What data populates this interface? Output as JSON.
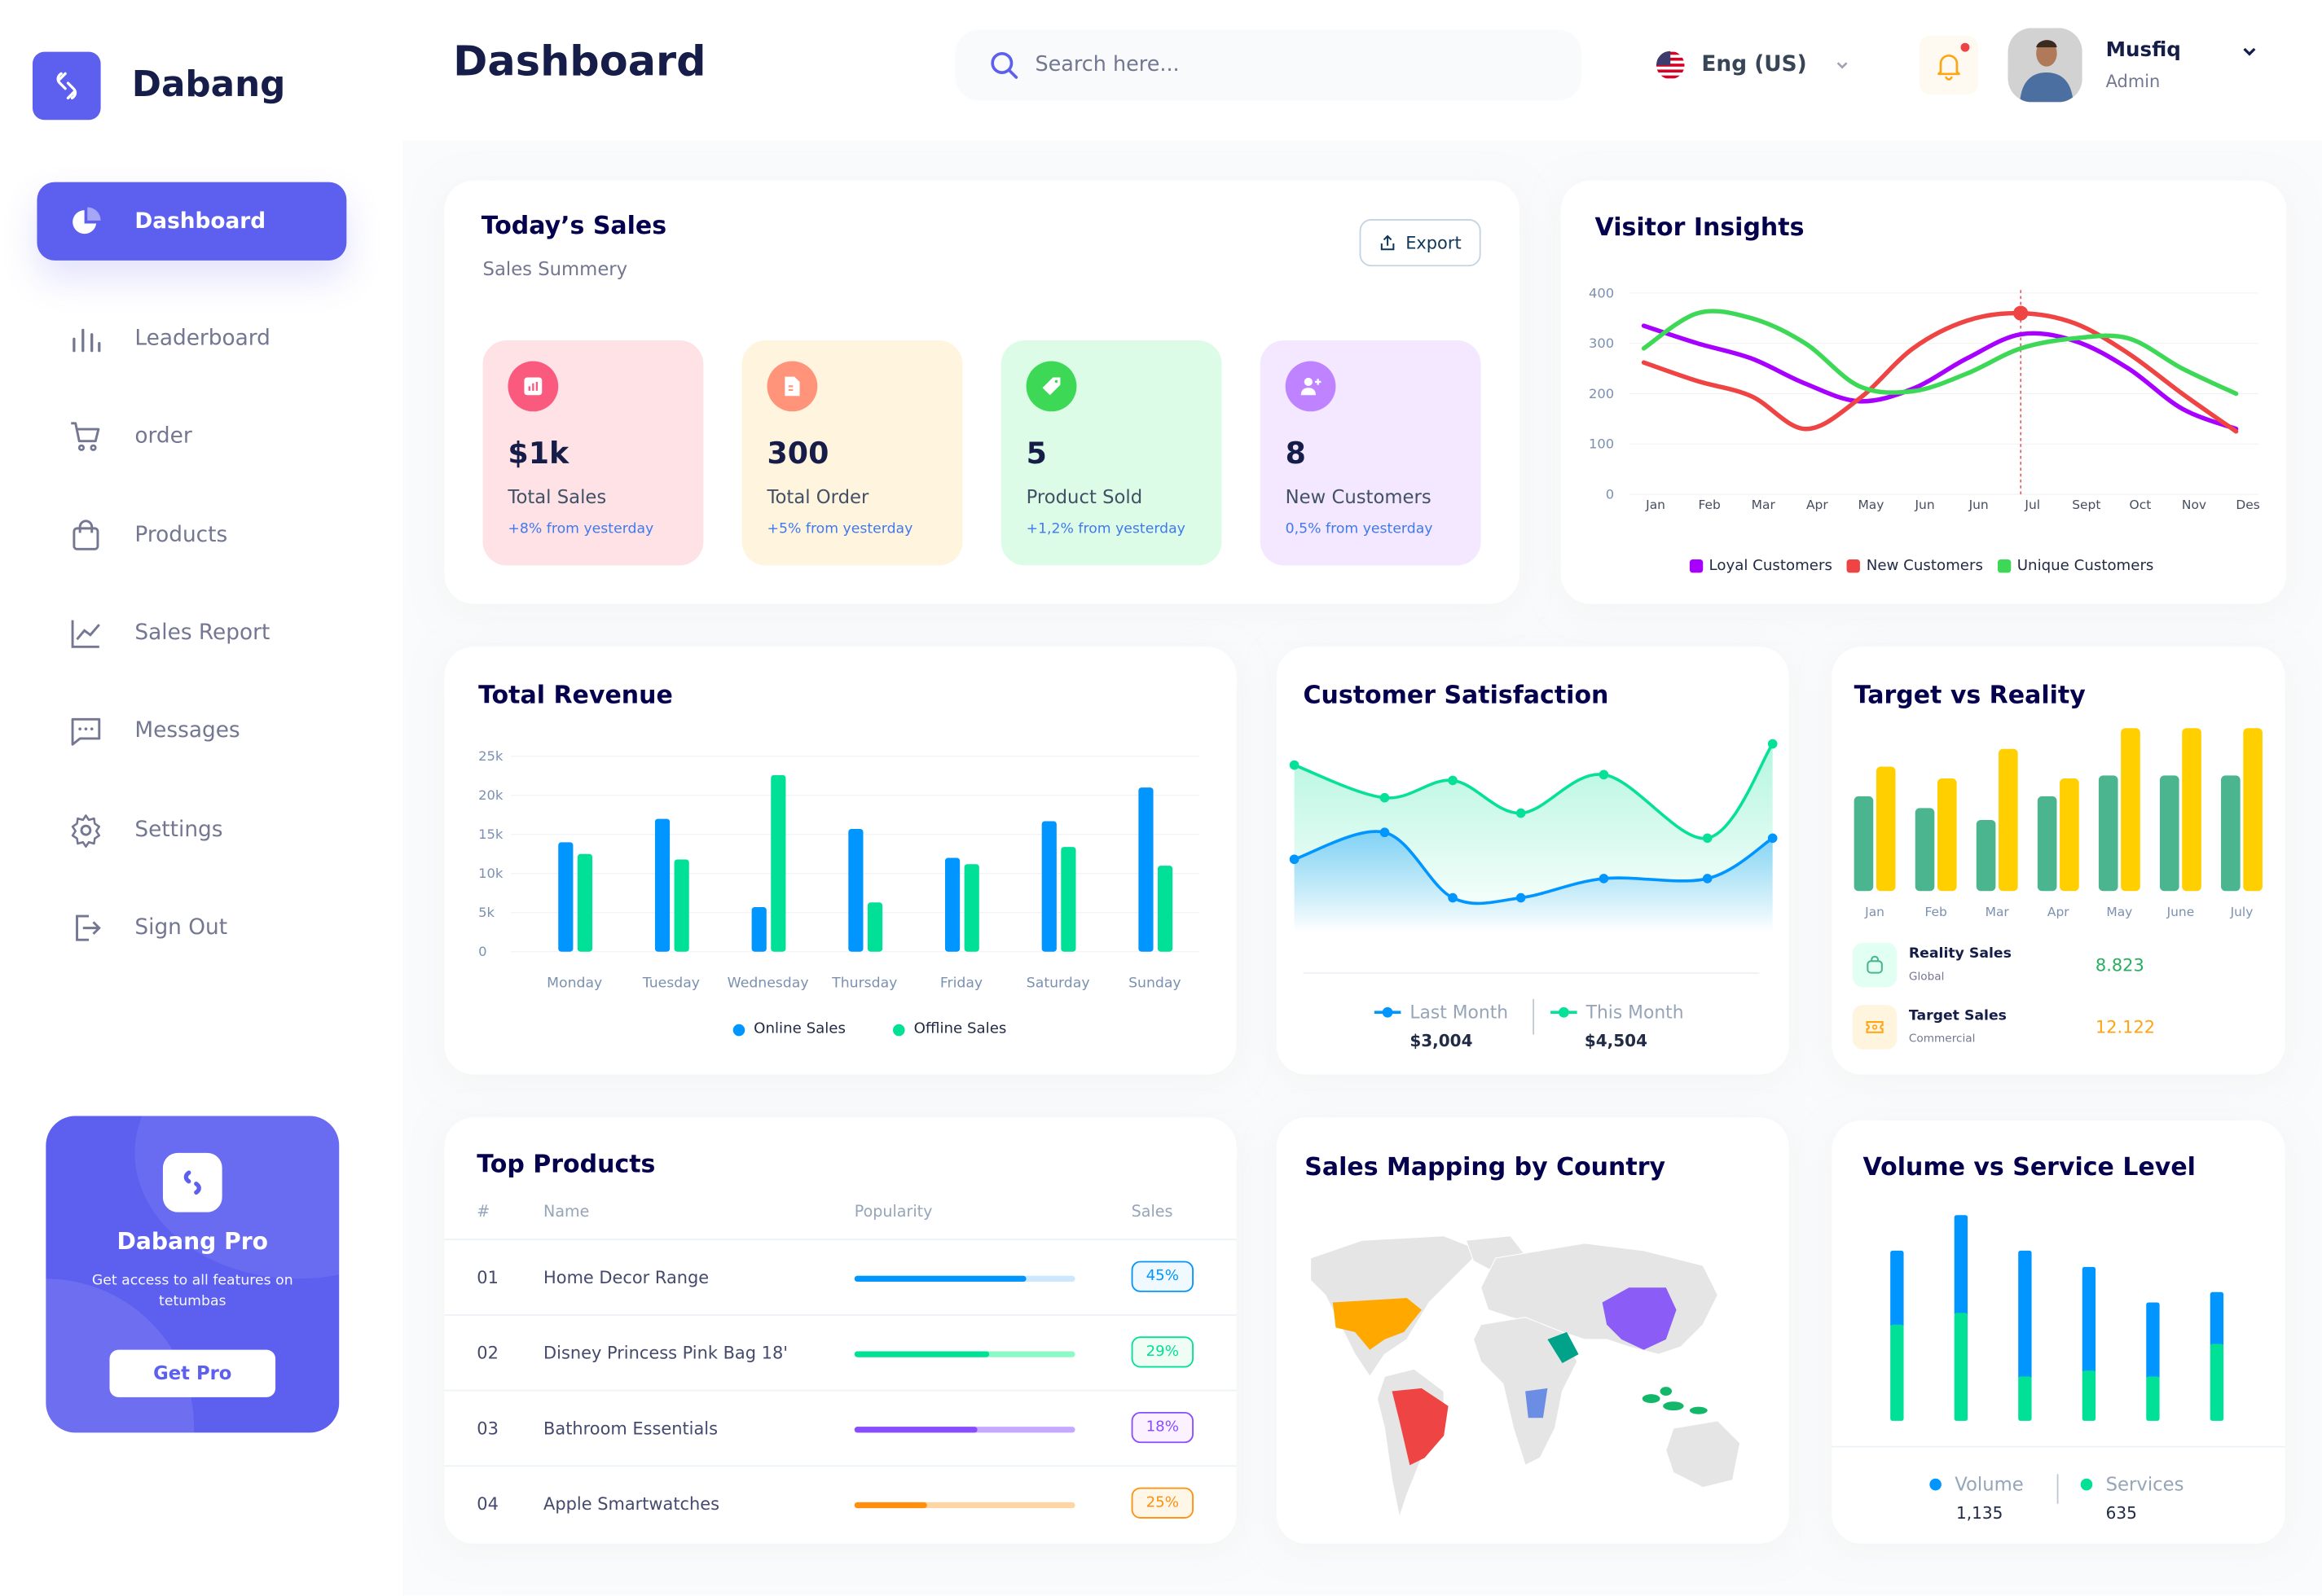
{
  "brand": {
    "name": "Dabang"
  },
  "header": {
    "title": "Dashboard",
    "search_placeholder": "Search here...",
    "language": "Eng (US)",
    "user": {
      "name": "Musfiq",
      "role": "Admin"
    },
    "has_notification": true
  },
  "colors": {
    "accent": "#5D5FEF",
    "title": "#05004E",
    "muted": "#737791"
  },
  "sidebar": {
    "items": [
      {
        "label": "Dashboard",
        "icon": "pie-chart-icon",
        "active": true
      },
      {
        "label": "Leaderboard",
        "icon": "bar-chart-icon"
      },
      {
        "label": "order",
        "icon": "cart-icon"
      },
      {
        "label": "Products",
        "icon": "shopping-bag-icon"
      },
      {
        "label": "Sales Report",
        "icon": "line-chart-icon"
      },
      {
        "label": "Messages",
        "icon": "message-icon"
      },
      {
        "label": "Settings",
        "icon": "gear-icon"
      },
      {
        "label": "Sign Out",
        "icon": "sign-out-icon"
      }
    ],
    "promo": {
      "title": "Dabang Pro",
      "text": "Get access to all features on tetumbas",
      "button": "Get Pro"
    }
  },
  "todays_sales": {
    "title": "Today’s Sales",
    "subtitle": "Sales Summery",
    "export_label": "Export",
    "cards": [
      {
        "value": "$1k",
        "label": "Total Sales",
        "change": "+8% from yesterday",
        "bg": "#FFE2E5",
        "icon_bg": "#FA5A7D",
        "icon": "chart-icon"
      },
      {
        "value": "300",
        "label": "Total Order",
        "change": "+5% from yesterday",
        "bg": "#FFF4DE",
        "icon_bg": "#FF947A",
        "icon": "document-icon"
      },
      {
        "value": "5",
        "label": "Product Sold",
        "change": "+1,2% from yesterday",
        "bg": "#DCFCE7",
        "icon_bg": "#3CD856",
        "icon": "tag-icon"
      },
      {
        "value": "8",
        "label": "New Customers",
        "change": "0,5% from yesterday",
        "bg": "#F3E8FF",
        "icon_bg": "#BF83FF",
        "icon": "add-user-icon"
      }
    ]
  },
  "chart_data": [
    {
      "title": "Visitor Insights",
      "type": "line",
      "x": [
        "Jan",
        "Feb",
        "Mar",
        "Apr",
        "May",
        "Jun",
        "Jun",
        "Jul",
        "Sept",
        "Oct",
        "Nov",
        "Des"
      ],
      "ylim": [
        0,
        400
      ],
      "yticks": [
        0,
        100,
        200,
        300,
        400
      ],
      "grid": true,
      "legend": "bottom",
      "highlight": {
        "series": "New Customers",
        "x": "Jul"
      },
      "series": [
        {
          "name": "Loyal Customers",
          "color": "#A700FF",
          "values": [
            335,
            300,
            270,
            220,
            185,
            210,
            270,
            318,
            305,
            250,
            170,
            130
          ]
        },
        {
          "name": "New Customers",
          "color": "#EF4444",
          "values": [
            262,
            225,
            195,
            130,
            190,
            290,
            345,
            360,
            340,
            280,
            200,
            125
          ]
        },
        {
          "name": "Unique Customers",
          "color": "#3CD856",
          "values": [
            290,
            360,
            350,
            300,
            215,
            205,
            240,
            290,
            310,
            310,
            250,
            200
          ]
        }
      ]
    },
    {
      "title": "Total Revenue",
      "type": "bar",
      "categories": [
        "Monday",
        "Tuesday",
        "Wednesday",
        "Thursday",
        "Friday",
        "Saturday",
        "Sunday"
      ],
      "ylim": [
        0,
        25000
      ],
      "yticks": [
        "0",
        "5k",
        "10k",
        "15k",
        "20k",
        "25k"
      ],
      "grid": true,
      "legend": "bottom",
      "series": [
        {
          "name": "Online Sales",
          "color": "#0095FF",
          "values": [
            14000,
            17000,
            5700,
            15700,
            12000,
            16700,
            21000
          ]
        },
        {
          "name": "Offline Sales",
          "color": "#00E096",
          "values": [
            12500,
            11800,
            22600,
            6300,
            11200,
            13400,
            11000
          ]
        }
      ]
    },
    {
      "title": "Customer Satisfaction",
      "type": "area",
      "ylim": [
        0,
        100
      ],
      "legend": "bottom",
      "series": [
        {
          "name": "Last Month",
          "total": "$3,004",
          "color": "#0095FF",
          "values": [
            38,
            52,
            18,
            18,
            28,
            28,
            49
          ]
        },
        {
          "name": "This Month",
          "total": "$4,504",
          "color": "#07E098",
          "values": [
            87,
            70,
            79,
            62,
            82,
            49,
            98
          ]
        }
      ]
    },
    {
      "title": "Target vs Reality",
      "type": "bar",
      "categories": [
        "Jan",
        "Feb",
        "Mar",
        "Apr",
        "May",
        "June",
        "July"
      ],
      "ylim": [
        0,
        11
      ],
      "series": [
        {
          "name": "Reality Sales",
          "sub": "Global",
          "total": "8.823",
          "color": "#4AB58E",
          "values": [
            6.4,
            5.6,
            4.8,
            6.4,
            7.8,
            7.8,
            7.8
          ]
        },
        {
          "name": "Target Sales",
          "sub": "Commercial",
          "total": "12.122",
          "color": "#FFCF00",
          "values": [
            8.4,
            7.6,
            9.6,
            7.6,
            11,
            11,
            11
          ]
        }
      ]
    },
    {
      "title": "Volume vs Service Level",
      "type": "stacked-bar",
      "ylim": [
        0,
        140
      ],
      "legend": "bottom",
      "series": [
        {
          "name": "Volume",
          "total": "1,135",
          "color": "#0095FF",
          "values": [
            50,
            66,
            85,
            70,
            50,
            35
          ]
        },
        {
          "name": "Services",
          "total": "635",
          "color": "#00E096",
          "values": [
            65,
            73,
            30,
            34,
            30,
            52
          ]
        }
      ]
    }
  ],
  "top_products": {
    "title": "Top Products",
    "columns": [
      "#",
      "Name",
      "Popularity",
      "Sales"
    ],
    "rows": [
      {
        "rank": "01",
        "name": "Home Decor Range",
        "popularity": 0.78,
        "sales": "45%",
        "color": "#0095FF",
        "track": "#CDE7FF",
        "badge_bg": "#F0F9FF"
      },
      {
        "rank": "02",
        "name": "Disney Princess Pink Bag 18'",
        "popularity": 0.61,
        "sales": "29%",
        "color": "#00E096",
        "track": "#8CFAC7",
        "badge_bg": "#F0FDF4"
      },
      {
        "rank": "03",
        "name": "Bathroom Essentials",
        "popularity": 0.56,
        "sales": "18%",
        "color": "#884DFF",
        "track": "#C5A8FF",
        "badge_bg": "#FBF1FF"
      },
      {
        "rank": "04",
        "name": "Apple Smartwatches",
        "popularity": 0.33,
        "sales": "25%",
        "color": "#FF8F0D",
        "track": "#FFD5A4",
        "badge_bg": "#FEF6E6"
      }
    ]
  },
  "sales_mapping": {
    "title": "Sales Mapping by Country",
    "land_color": "#E5E5E5",
    "highlight_colors": [
      "#FFA800",
      "#EF4444",
      "#8B5CF6",
      "#00A389",
      "#6B8DE3",
      "#12B76A"
    ]
  }
}
